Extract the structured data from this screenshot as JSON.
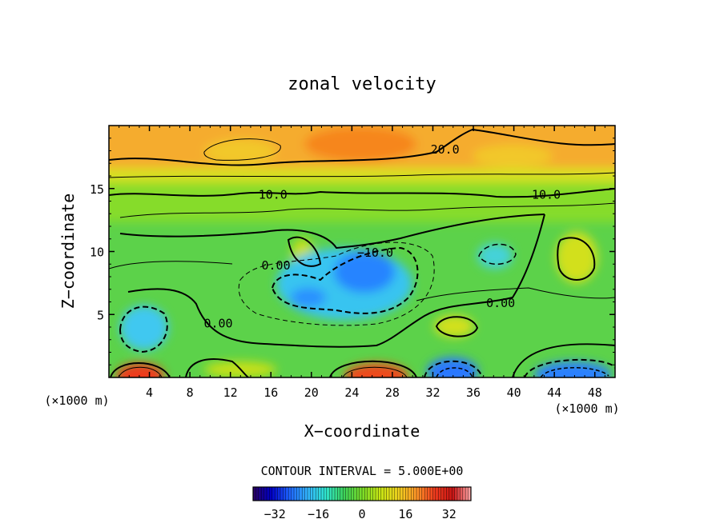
{
  "chart_data": {
    "type": "heatmap",
    "title": "zonal velocity",
    "xlabel": "X−coordinate",
    "ylabel": "Z−coordinate",
    "x_unit_left": "(×1000 m)",
    "x_unit_right": "(×1000 m)",
    "xlim": [
      0,
      50
    ],
    "ylim": [
      0,
      20
    ],
    "x_ticks": [
      4,
      8,
      12,
      16,
      20,
      24,
      28,
      32,
      36,
      40,
      44,
      48
    ],
    "y_ticks": [
      5,
      10,
      15
    ],
    "contour_interval_text": "CONTOUR INTERVAL = 5.000E+00",
    "contour_labels": [
      {
        "text": "20.0",
        "x": 33.2,
        "y": 18.1
      },
      {
        "text": "10.0",
        "x": 16.2,
        "y": 14.5
      },
      {
        "text": "10.0",
        "x": 43.2,
        "y": 14.5
      },
      {
        "text": "0.00",
        "x": 16.5,
        "y": 8.9
      },
      {
        "text": "−10.0",
        "x": 26.3,
        "y": 9.9
      },
      {
        "text": "0.00",
        "x": 38.7,
        "y": 5.9
      },
      {
        "text": "0.00",
        "x": 10.8,
        "y": 4.3
      }
    ],
    "colorbar": {
      "min": -40,
      "max": 40,
      "ticks": [
        -32,
        -16,
        0,
        16,
        32
      ],
      "colormap": [
        "#2a0060",
        "#0000c8",
        "#1e64ff",
        "#32b4ff",
        "#30e6d0",
        "#3cd25a",
        "#78dc28",
        "#c8e614",
        "#f0d21e",
        "#ff9628",
        "#f03c1e",
        "#c81414",
        "#ffaaaa"
      ]
    }
  }
}
